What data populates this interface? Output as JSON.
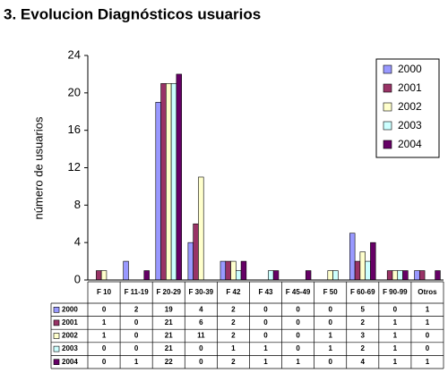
{
  "chart_data": {
    "type": "bar",
    "title": "3. Evolucion Diagnósticos usuarios",
    "y_label": "número de usuarios",
    "categories": [
      "F 10",
      "F 11-19",
      "F 20-29",
      "F 30-39",
      "F 42",
      "F 43",
      "F 45-49",
      "F 50",
      "F 60-69",
      "F 90-99",
      "Otros"
    ],
    "series": [
      {
        "name": "2000",
        "color": "#9999ff",
        "values": [
          0,
          2,
          19,
          4,
          2,
          0,
          0,
          0,
          5,
          0,
          1
        ]
      },
      {
        "name": "2001",
        "color": "#993366",
        "values": [
          1,
          0,
          21,
          6,
          2,
          0,
          0,
          0,
          2,
          1,
          1
        ]
      },
      {
        "name": "2002",
        "color": "#ffffcc",
        "values": [
          1,
          0,
          21,
          11,
          2,
          0,
          0,
          1,
          3,
          1,
          0
        ]
      },
      {
        "name": "2003",
        "color": "#ccffff",
        "values": [
          0,
          0,
          21,
          0,
          1,
          1,
          0,
          1,
          2,
          1,
          0
        ]
      },
      {
        "name": "2004",
        "color": "#660066",
        "values": [
          0,
          1,
          22,
          0,
          2,
          1,
          1,
          0,
          4,
          1,
          1
        ]
      }
    ],
    "ylim": [
      0,
      24
    ],
    "yticks": [
      0,
      4,
      8,
      12,
      16,
      20,
      24
    ],
    "legend": "top-right",
    "data_table": true
  }
}
